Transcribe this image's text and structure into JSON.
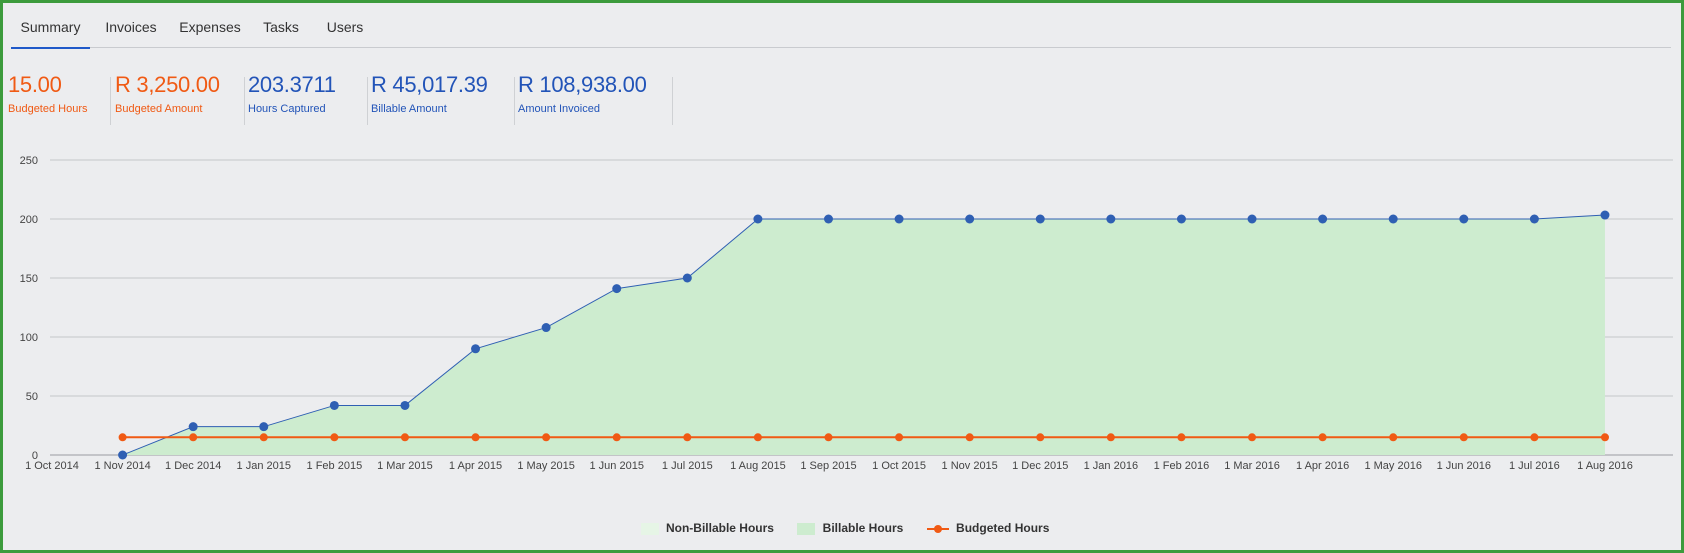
{
  "tabs": [
    {
      "label": "Summary",
      "active": true
    },
    {
      "label": "Invoices",
      "active": false
    },
    {
      "label": "Expenses",
      "active": false
    },
    {
      "label": "Tasks",
      "active": false
    },
    {
      "label": "Users",
      "active": false
    }
  ],
  "kpis": [
    {
      "value": "15.00",
      "label": "Budgeted Hours",
      "color": "#f05a14"
    },
    {
      "value": "R 3,250.00",
      "label": "Budgeted Amount",
      "color": "#f05a14"
    },
    {
      "value": "203.3711",
      "label": "Hours Captured",
      "color": "#2254b8"
    },
    {
      "value": "R 45,017.39",
      "label": "Billable Amount",
      "color": "#2254b8"
    },
    {
      "value": "R 108,938.00",
      "label": "Amount Invoiced",
      "color": "#2254b8"
    }
  ],
  "legend": [
    {
      "label": "Non-Billable Hours",
      "color": "#e6f5e6"
    },
    {
      "label": "Billable Hours",
      "color": "#cdeccf"
    },
    {
      "label": "Budgeted Hours",
      "color": "#f05a14"
    }
  ],
  "chart_data": {
    "type": "line",
    "x": [
      "1 Oct 2014",
      "1 Nov 2014",
      "1 Dec 2014",
      "1 Jan 2015",
      "1 Feb 2015",
      "1 Mar 2015",
      "1 Apr 2015",
      "1 May 2015",
      "1 Jun 2015",
      "1 Jul 2015",
      "1 Aug 2015",
      "1 Sep 2015",
      "1 Oct 2015",
      "1 Nov 2015",
      "1 Dec 2015",
      "1 Jan 2016",
      "1 Feb 2016",
      "1 Mar 2016",
      "1 Apr 2016",
      "1 May 2016",
      "1 Jun 2016",
      "1 Jul 2016",
      "1 Aug 2016"
    ],
    "ylim": [
      0,
      250
    ],
    "yticks": [
      0,
      50,
      100,
      150,
      200,
      250
    ],
    "grid": true,
    "legend_position": "bottom",
    "series": [
      {
        "name": "Billable Hours",
        "type": "area",
        "color": "#2f5fb3",
        "fill": "#cdeccf",
        "values": [
          null,
          0,
          24,
          24,
          42,
          42,
          90,
          108,
          141,
          150,
          200,
          200,
          200,
          200,
          200,
          200,
          200,
          200,
          200,
          200,
          200,
          200,
          203.37
        ]
      },
      {
        "name": "Budgeted Hours",
        "type": "line",
        "color": "#f05a14",
        "values": [
          null,
          15,
          15,
          15,
          15,
          15,
          15,
          15,
          15,
          15,
          15,
          15,
          15,
          15,
          15,
          15,
          15,
          15,
          15,
          15,
          15,
          15,
          15
        ]
      }
    ]
  }
}
